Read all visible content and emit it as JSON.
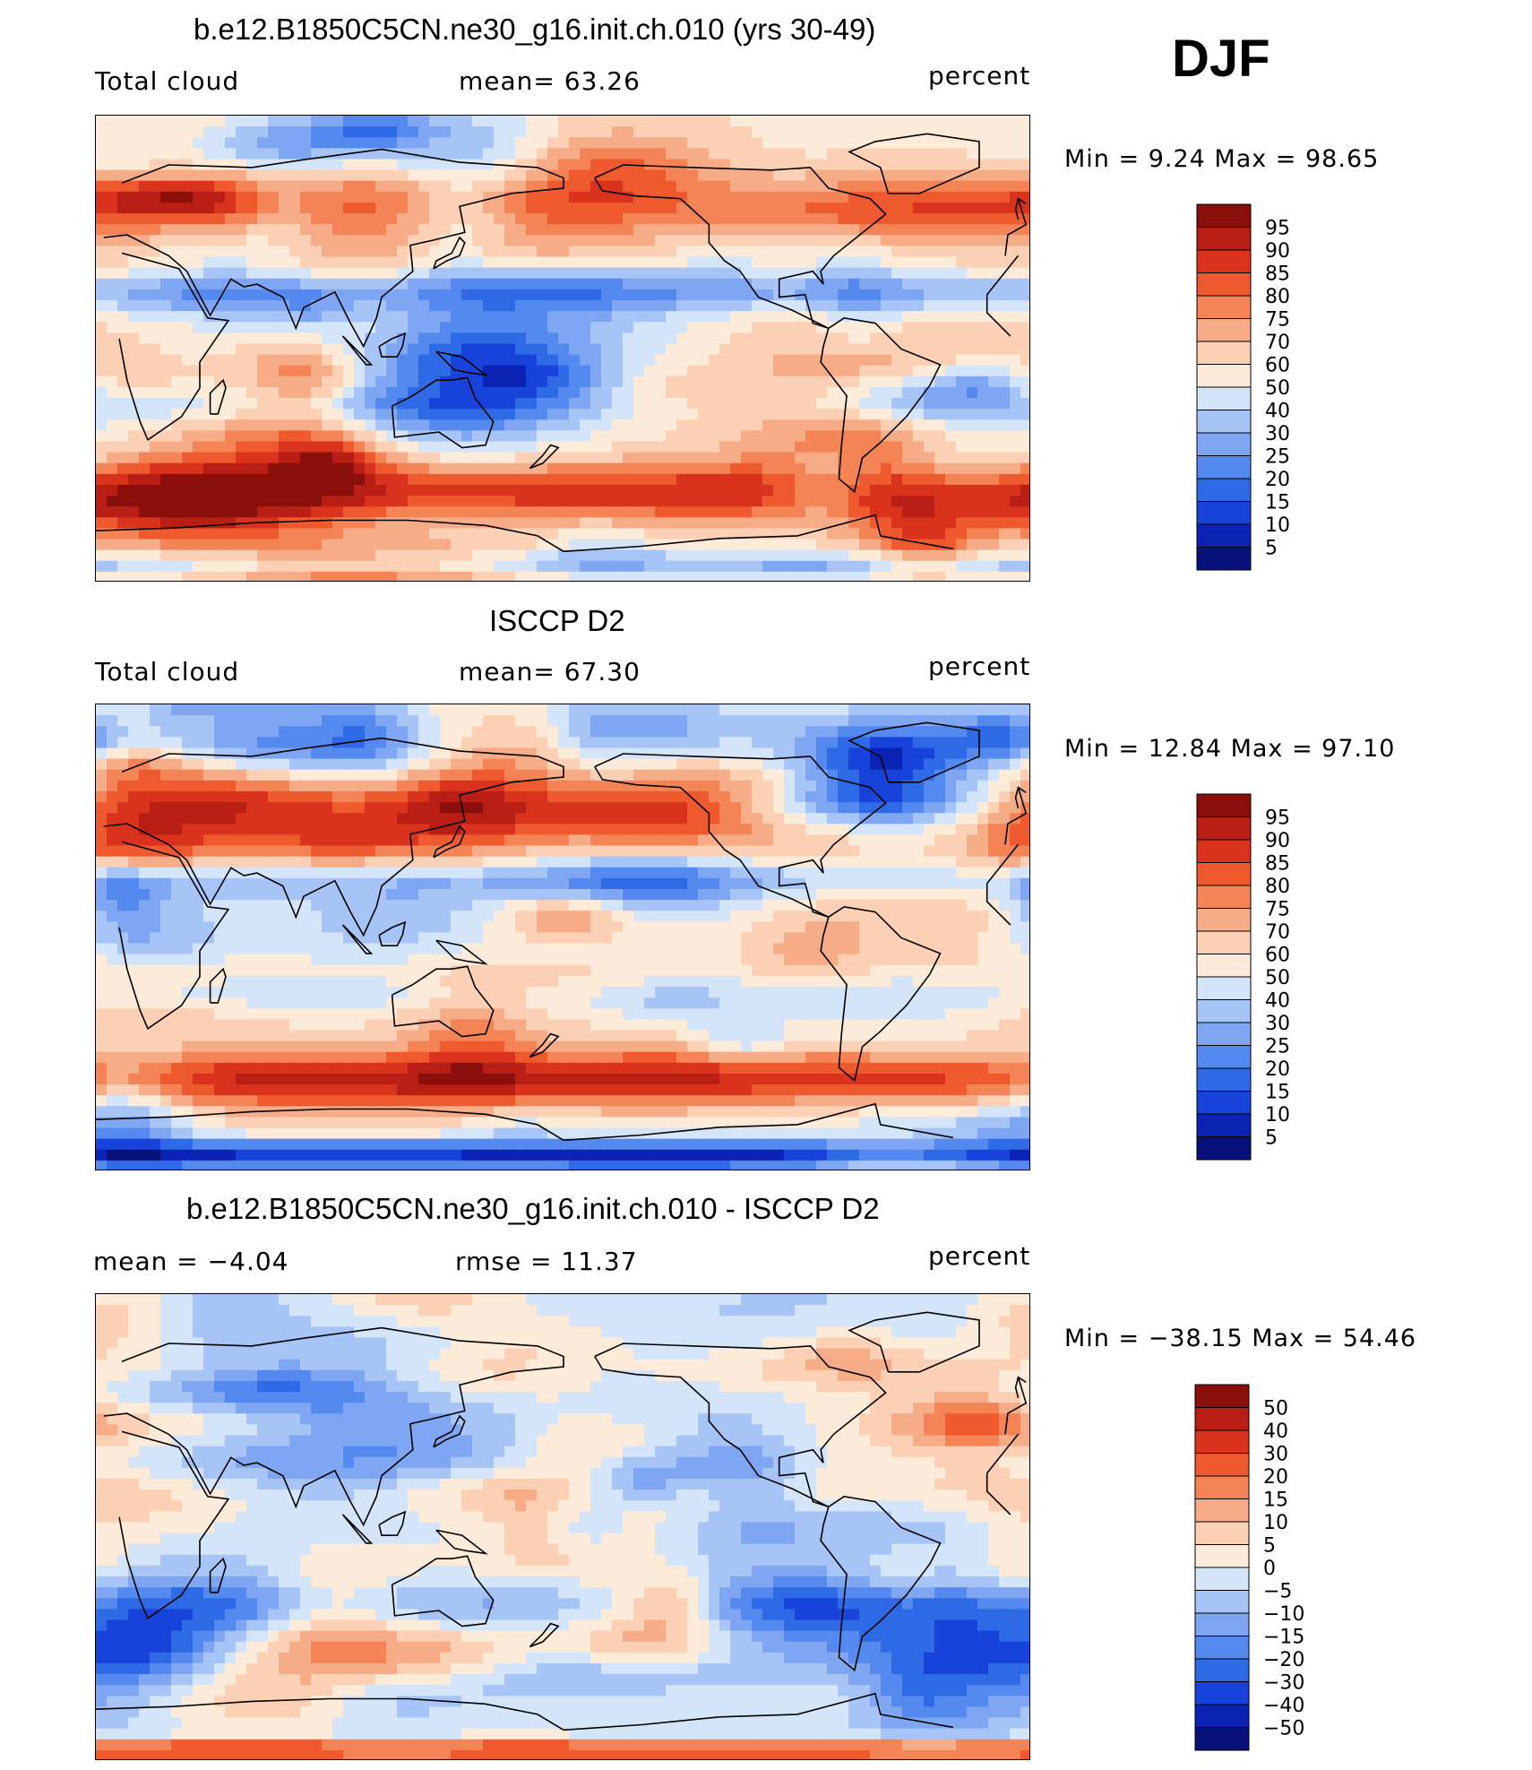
{
  "figure": {
    "season": "DJF",
    "colors": {
      "scale": [
        "#08117a",
        "#0b23b4",
        "#1743da",
        "#2e6ae6",
        "#5489ef",
        "#7ea6f3",
        "#a7c4f6",
        "#d4e4f9",
        "#fdebd9",
        "#fbd0b4",
        "#f6ac87",
        "#f48456",
        "#ee5a2e",
        "#d9331d",
        "#b81e13",
        "#8a0f0b"
      ]
    }
  },
  "chart_data": [
    {
      "type": "heatmap",
      "title": "b.e12.B1850C5CN.ne30_g16.init.ch.010 (yrs 30-49)",
      "left_label": "Total cloud",
      "center_label": "mean=   63.26",
      "units": "percent",
      "stats": "Min =    9.24  Max =    98.65",
      "mean": 63.26,
      "min": 9.24,
      "max": 98.65,
      "levels": [
        "95",
        "90",
        "85",
        "80",
        "75",
        "70",
        "60",
        "50",
        "40",
        "30",
        "25",
        "20",
        "15",
        "10",
        "5"
      ],
      "x_range": [
        0,
        360
      ],
      "y_range": [
        -90,
        90
      ]
    },
    {
      "type": "heatmap",
      "title": "ISCCP D2",
      "left_label": "Total cloud",
      "center_label": "mean=   67.30",
      "units": "percent",
      "stats": "Min =   12.84  Max =    97.10",
      "mean": 67.3,
      "min": 12.84,
      "max": 97.1,
      "levels": [
        "95",
        "90",
        "85",
        "80",
        "75",
        "70",
        "60",
        "50",
        "40",
        "30",
        "25",
        "20",
        "15",
        "10",
        "5"
      ],
      "x_range": [
        0,
        360
      ],
      "y_range": [
        -90,
        90
      ]
    },
    {
      "type": "heatmap",
      "title": "b.e12.B1850C5CN.ne30_g16.init.ch.010 - ISCCP D2",
      "left_label": "mean  =   −4.04",
      "center_label": "rmse  =   11.37",
      "units": "percent",
      "stats": "Min  =  −38.15  Max  =    54.46",
      "mean": -4.04,
      "rmse": 11.37,
      "min": -38.15,
      "max": 54.46,
      "levels": [
        "50",
        "40",
        "30",
        "20",
        "15",
        "10",
        "5",
        "0",
        "−5",
        "−10",
        "−15",
        "−20",
        "−30",
        "−40",
        "−50"
      ],
      "x_range": [
        0,
        360
      ],
      "y_range": [
        -90,
        90
      ]
    }
  ]
}
